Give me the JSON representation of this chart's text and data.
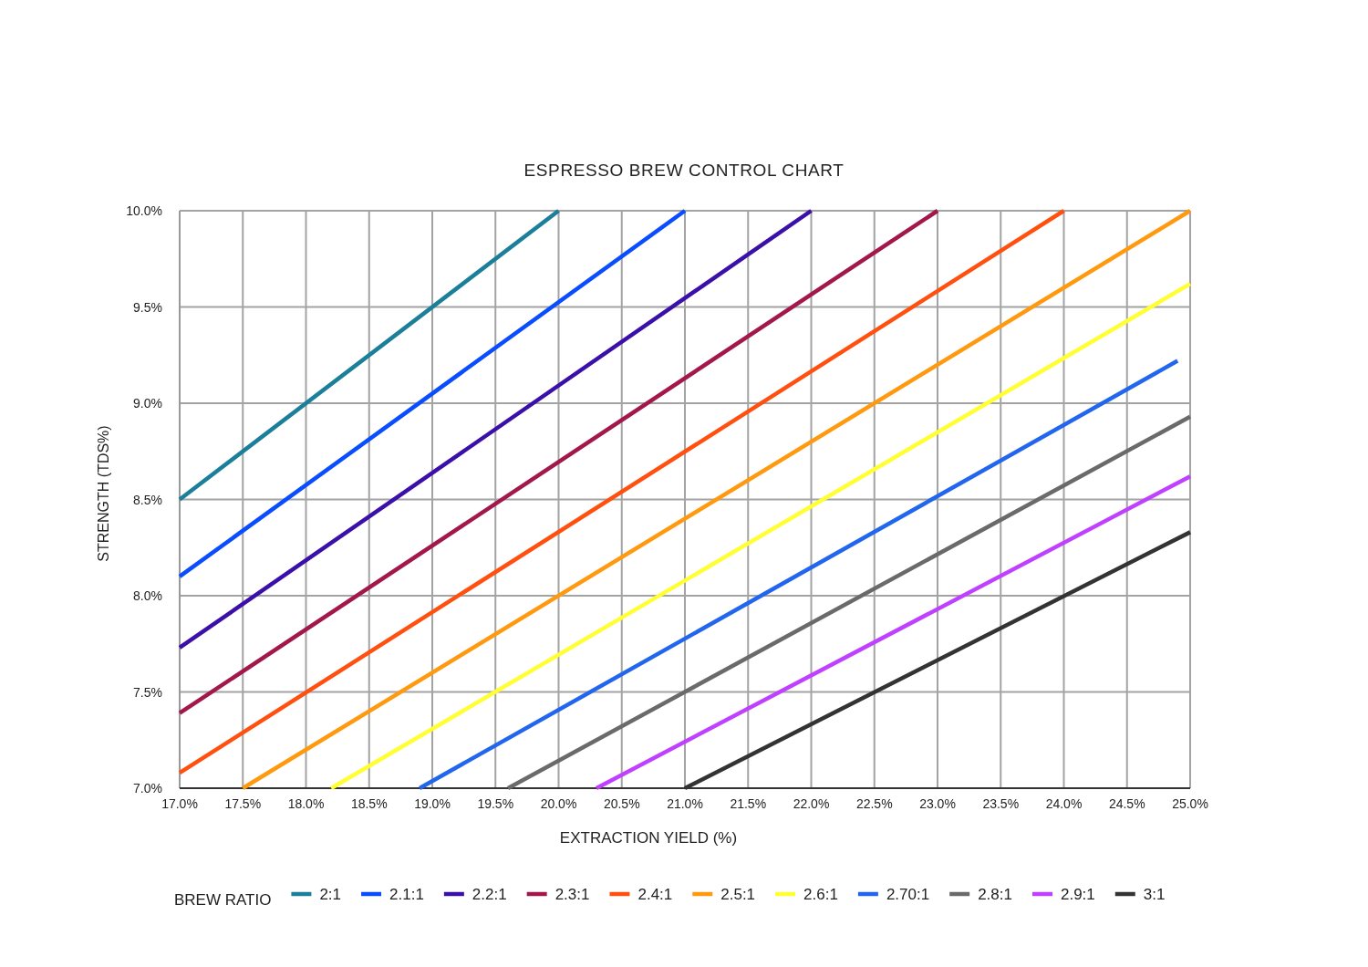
{
  "chart_data": {
    "type": "line",
    "title": "ESPRESSO BREW CONTROL CHART",
    "xlabel": "EXTRACTION YIELD (%)",
    "ylabel": "STRENGTH (TDS%)",
    "legend_title": "BREW RATIO",
    "legend": "bottom",
    "grid": true,
    "xlim": [
      17,
      25
    ],
    "ylim": [
      7,
      10
    ],
    "xticks": [
      {
        "value": 17,
        "label": "17.0%"
      },
      {
        "value": 17.5,
        "label": "17.5%"
      },
      {
        "value": 18,
        "label": "18.0%"
      },
      {
        "value": 18.5,
        "label": "18.5%"
      },
      {
        "value": 19,
        "label": "19.0%"
      },
      {
        "value": 19.5,
        "label": "19.5%"
      },
      {
        "value": 20,
        "label": "20.0%"
      },
      {
        "value": 20.5,
        "label": "20.5%"
      },
      {
        "value": 21,
        "label": "21.0%"
      },
      {
        "value": 21.5,
        "label": "21.5%"
      },
      {
        "value": 22,
        "label": "22.0%"
      },
      {
        "value": 22.5,
        "label": "22.5%"
      },
      {
        "value": 23,
        "label": "23.0%"
      },
      {
        "value": 23.5,
        "label": "23.5%"
      },
      {
        "value": 24,
        "label": "24.0%"
      },
      {
        "value": 24.5,
        "label": "24.5%"
      },
      {
        "value": 25,
        "label": "25.0%"
      }
    ],
    "yticks": [
      {
        "value": 7,
        "label": "7.0%"
      },
      {
        "value": 7.5,
        "label": "7.5%"
      },
      {
        "value": 8,
        "label": "8.0%"
      },
      {
        "value": 8.5,
        "label": "8.5%"
      },
      {
        "value": 9,
        "label": "9.0%"
      },
      {
        "value": 9.5,
        "label": "9.5%"
      },
      {
        "value": 10,
        "label": "10.0%"
      }
    ],
    "series": [
      {
        "name": "2:1",
        "color": "#1b7f9a",
        "x": [
          17,
          20
        ],
        "values": [
          8.5,
          10
        ]
      },
      {
        "name": "2.1:1",
        "color": "#0a4dff",
        "x": [
          17,
          21
        ],
        "values": [
          8.1,
          10
        ]
      },
      {
        "name": "2.2:1",
        "color": "#3a10a8",
        "x": [
          17,
          22
        ],
        "values": [
          7.73,
          10
        ]
      },
      {
        "name": "2.3:1",
        "color": "#a3184a",
        "x": [
          17,
          23
        ],
        "values": [
          7.39,
          10
        ]
      },
      {
        "name": "2.4:1",
        "color": "#ff5010",
        "x": [
          17,
          24
        ],
        "values": [
          7.08,
          10
        ]
      },
      {
        "name": "2.5:1",
        "color": "#ff9a10",
        "x": [
          17.5,
          25
        ],
        "values": [
          7,
          10
        ]
      },
      {
        "name": "2.6:1",
        "color": "#ffff33",
        "x": [
          18.2,
          25
        ],
        "values": [
          7,
          9.62
        ]
      },
      {
        "name": "2.70:1",
        "color": "#2266ee",
        "x": [
          18.9,
          24.9
        ],
        "values": [
          7,
          9.22
        ]
      },
      {
        "name": "2.8:1",
        "color": "#6a6a6a",
        "x": [
          19.6,
          25
        ],
        "values": [
          7,
          8.93
        ]
      },
      {
        "name": "2.9:1",
        "color": "#c040ff",
        "x": [
          20.3,
          25
        ],
        "values": [
          7,
          8.62
        ]
      },
      {
        "name": "3:1",
        "color": "#333333",
        "x": [
          21,
          25
        ],
        "values": [
          7,
          8.33
        ]
      }
    ]
  }
}
